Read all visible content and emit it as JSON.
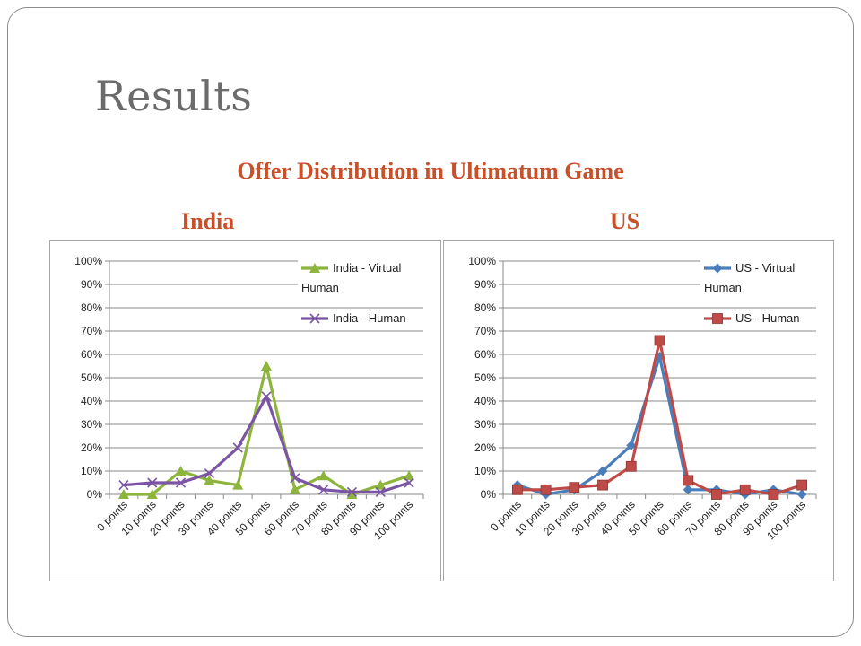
{
  "slide": {
    "title": "Results",
    "heading": "Offer Distribution in Ultimatum Game",
    "left_label": "India",
    "right_label": "US"
  },
  "chart_data": [
    {
      "type": "line",
      "categories": [
        "0 points",
        "10 points",
        "20 points",
        "30 points",
        "40 points",
        "50 points",
        "60 points",
        "70 points",
        "80 points",
        "90 points",
        "100 points"
      ],
      "y_ticks": [
        "0%",
        "10%",
        "20%",
        "30%",
        "40%",
        "50%",
        "60%",
        "70%",
        "80%",
        "90%",
        "100%"
      ],
      "ylim": [
        0,
        100
      ],
      "grid": true,
      "legend_position": "top-right",
      "series": [
        {
          "name": "India - Virtual Human",
          "color": "#8db53c",
          "marker": "triangle",
          "values": [
            0,
            0,
            10,
            6,
            4,
            55,
            2,
            8,
            0,
            4,
            8
          ]
        },
        {
          "name": "India - Human",
          "color": "#7b55a3",
          "marker": "x",
          "values": [
            4,
            5,
            5,
            9,
            20,
            42,
            7,
            2,
            1,
            1,
            5
          ]
        }
      ]
    },
    {
      "type": "line",
      "categories": [
        "0 points",
        "10 points",
        "20 points",
        "30 points",
        "40 points",
        "50 points",
        "60 points",
        "70 points",
        "80 points",
        "90 points",
        "100 points"
      ],
      "y_ticks": [
        "0%",
        "10%",
        "20%",
        "30%",
        "40%",
        "50%",
        "60%",
        "70%",
        "80%",
        "90%",
        "100%"
      ],
      "ylim": [
        0,
        100
      ],
      "grid": true,
      "legend_position": "top-right",
      "series": [
        {
          "name": "US - Virtual Human",
          "color": "#4a7ebb",
          "marker": "diamond",
          "values": [
            4,
            0,
            2,
            10,
            21,
            59,
            2,
            2,
            0,
            2,
            0
          ]
        },
        {
          "name": "US - Human",
          "color": "#be4b48",
          "marker": "square",
          "values": [
            2,
            2,
            3,
            4,
            12,
            66,
            6,
            0,
            2,
            0,
            4
          ]
        }
      ]
    }
  ]
}
